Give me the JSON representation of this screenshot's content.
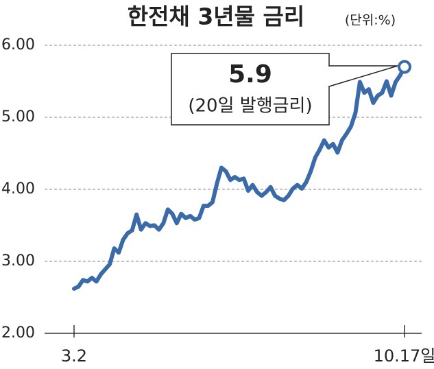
{
  "chart_data": {
    "type": "line",
    "title": "한전채 3년물 금리",
    "subtitle": "(단위:%)",
    "categories": [
      "3.2",
      null,
      null,
      null,
      null,
      null,
      null,
      null,
      null,
      null,
      null,
      null,
      null,
      null,
      null,
      null,
      null,
      null,
      null,
      null,
      null,
      null,
      null,
      null,
      null,
      null,
      null,
      null,
      null,
      null,
      null,
      null,
      null,
      null,
      null,
      null,
      null,
      null,
      null,
      null,
      null,
      null,
      null,
      null,
      null,
      null,
      null,
      null,
      null,
      null,
      null,
      null,
      null,
      null,
      null,
      null,
      null,
      null,
      null,
      null,
      null,
      null,
      null,
      null,
      null,
      null,
      null,
      null,
      null,
      null,
      null,
      null,
      null,
      null,
      "10.17일"
    ],
    "series": [
      {
        "color": "#3a6aa8",
        "values": [
          2.62,
          2.65,
          2.74,
          2.72,
          2.77,
          2.72,
          2.82,
          2.89,
          2.96,
          3.18,
          3.12,
          3.3,
          3.39,
          3.43,
          3.65,
          3.44,
          3.53,
          3.49,
          3.5,
          3.44,
          3.53,
          3.72,
          3.66,
          3.53,
          3.66,
          3.6,
          3.63,
          3.58,
          3.6,
          3.77,
          3.77,
          3.82,
          4.08,
          4.3,
          4.25,
          4.13,
          4.17,
          4.13,
          4.15,
          3.98,
          4.06,
          3.96,
          3.91,
          3.96,
          4.03,
          3.91,
          3.87,
          3.85,
          3.91,
          4.01,
          4.06,
          4.01,
          4.1,
          4.25,
          4.44,
          4.55,
          4.68,
          4.58,
          4.63,
          4.51,
          4.68,
          4.77,
          4.87,
          5.06,
          5.49,
          5.34,
          5.39,
          5.2,
          5.3,
          5.34,
          5.5,
          5.3,
          5.49,
          5.58,
          5.7
        ]
      }
    ],
    "ylim": [
      2,
      6
    ],
    "yticks": [
      {
        "value": 2,
        "label": "2.00"
      },
      {
        "value": 3,
        "label": "3.00"
      },
      {
        "value": 4,
        "label": "4.00"
      },
      {
        "value": 5,
        "label": "5.00"
      },
      {
        "value": 6,
        "label": "6.00"
      }
    ],
    "grid": true,
    "annotation": {
      "value": "5.9",
      "note": "(20일 발행금리)"
    }
  }
}
